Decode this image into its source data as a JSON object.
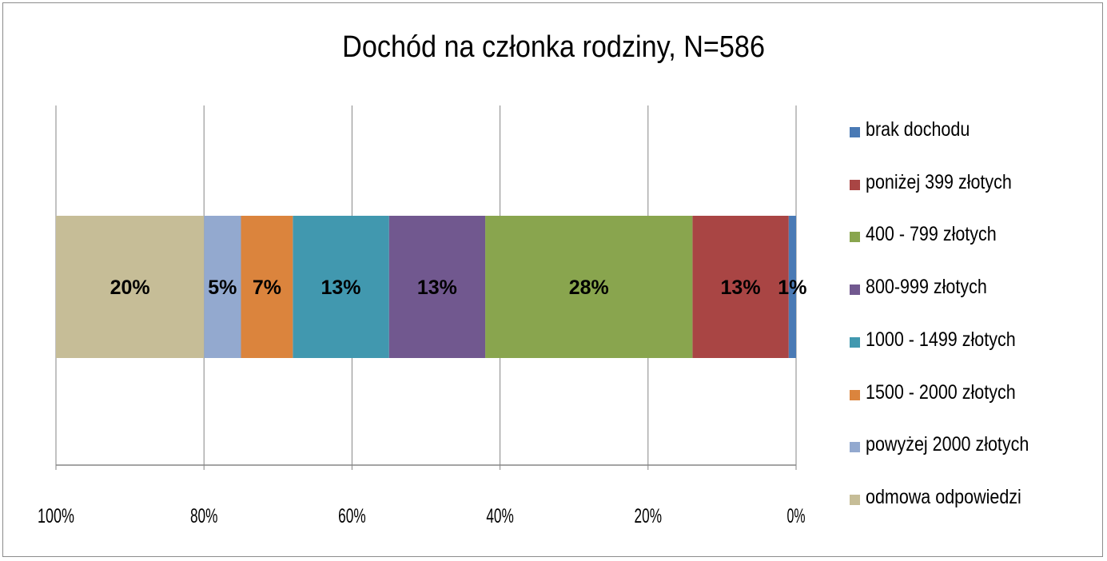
{
  "chart_data": {
    "type": "bar",
    "orientation": "horizontal",
    "stacked": "100%",
    "x_reversed": true,
    "title": "Dochód na członka rodziny, N=586",
    "xlim": [
      0,
      100
    ],
    "x_ticks": [
      0,
      20,
      40,
      60,
      80,
      100
    ],
    "x_tick_labels": [
      "0%",
      "20%",
      "40%",
      "60%",
      "80%",
      "100%"
    ],
    "grid": true,
    "legend_position": "right",
    "series": [
      {
        "name": "brak dochodu",
        "value": 1,
        "label": "1%",
        "color": "#4a7ab5"
      },
      {
        "name": "poniżej 399 złotych",
        "value": 13,
        "label": "13%",
        "color": "#a94544"
      },
      {
        "name": "400 - 799 złotych",
        "value": 28,
        "label": "28%",
        "color": "#89a54e"
      },
      {
        "name": "800-999 złotych",
        "value": 13,
        "label": "13%",
        "color": "#71588f"
      },
      {
        "name": "1000 - 1499 złotych",
        "value": 13,
        "label": "13%",
        "color": "#4198af"
      },
      {
        "name": "1500 - 2000 złotych",
        "value": 7,
        "label": "7%",
        "color": "#db843d"
      },
      {
        "name": "powyżej 2000 złotych",
        "value": 5,
        "label": "5%",
        "color": "#93a9cf"
      },
      {
        "name": "odmowa odpowiedzi",
        "value": 20,
        "label": "20%",
        "color": "#c6bd97"
      }
    ]
  }
}
